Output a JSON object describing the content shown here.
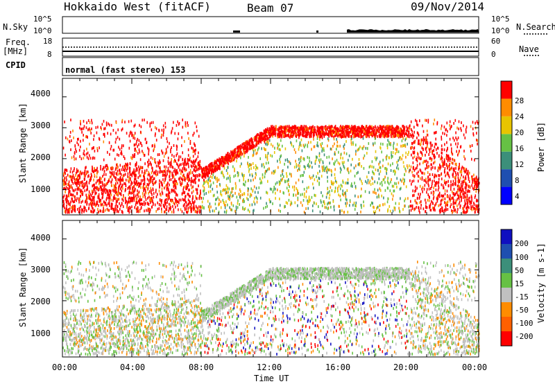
{
  "header": {
    "station": "Hokkaido West (fitACF)",
    "beam": "Beam 07",
    "date": "09/Nov/2014"
  },
  "left_labels": {
    "nsky": "N.Sky",
    "freq": "Freq.",
    "freq_unit": "[MHz]",
    "cpid": "CPID"
  },
  "right_labels": {
    "nsearch": "N.Search",
    "nave": "Nave"
  },
  "small_axes": {
    "noise_ticks": [
      "10^5",
      "10^0"
    ],
    "freq_ticks": [
      "18",
      "8"
    ],
    "nave_ticks": [
      "60",
      "0"
    ]
  },
  "cpid_text": "normal (fast stereo) 153",
  "chart_data": [
    {
      "type": "heatmap",
      "title": "",
      "xlabel": "Time UT",
      "ylabel": "Slant Range [km]",
      "x_ticks": [
        "00:00",
        "04:00",
        "08:00",
        "12:00",
        "16:00",
        "20:00",
        "00:00"
      ],
      "y_ticks": [
        "1000",
        "2000",
        "3000",
        "4000"
      ],
      "ylim": [
        180,
        4600
      ],
      "colorbar": {
        "label": "Power [dB]",
        "ticks": [
          "4",
          "8",
          "12",
          "16",
          "20",
          "24",
          "28"
        ],
        "colors": [
          "#0000ff",
          "#1f4fb0",
          "#3c8f7a",
          "#66c144",
          "#e8c400",
          "#ff8c00",
          "#ff0000"
        ]
      }
    },
    {
      "type": "heatmap",
      "title": "",
      "xlabel": "Time UT",
      "ylabel": "Slant Range [km]",
      "x_ticks": [
        "00:00",
        "04:00",
        "08:00",
        "12:00",
        "16:00",
        "20:00",
        "00:00"
      ],
      "y_ticks": [
        "1000",
        "2000",
        "3000",
        "4000"
      ],
      "ylim": [
        180,
        4600
      ],
      "colorbar": {
        "label": "Velocity [m s-1]",
        "ticks": [
          "200",
          "100",
          "50",
          "15",
          "-15",
          "-50",
          "-100",
          "-200"
        ],
        "colors": [
          "#1010c0",
          "#1f4fb0",
          "#3c8f7a",
          "#66c144",
          "#c0c0c0",
          "#ff8c00",
          "#ff6000",
          "#ff0000"
        ]
      }
    }
  ],
  "xaxis_label": "Time UT"
}
